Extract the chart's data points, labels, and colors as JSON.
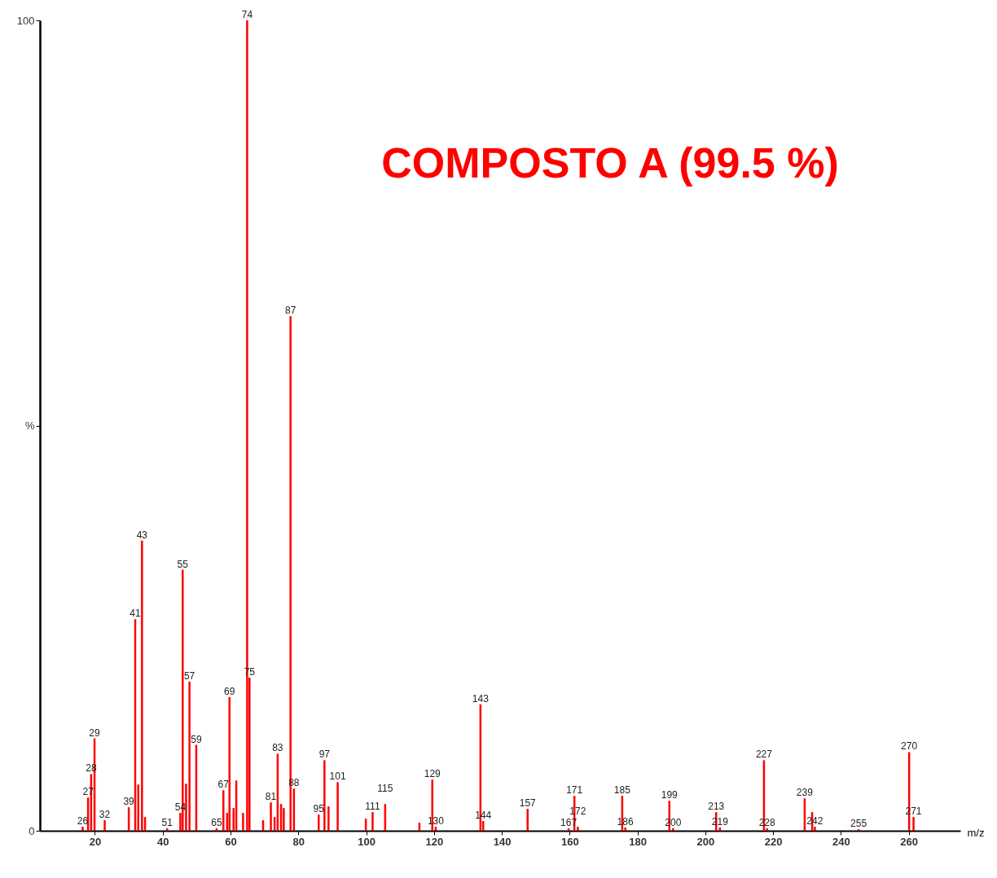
{
  "chart_data": {
    "type": "bar",
    "title": "COMPOSTO A (99.5 %)",
    "xlabel": "m/z",
    "x": [
      16.4,
      18.0,
      18.9,
      19.9,
      22.9,
      30.0,
      31.9,
      32.8,
      33.9,
      34.8,
      41.3,
      45.2,
      45.9,
      46.9,
      47.9,
      49.9,
      55.9,
      57.9,
      59.0,
      59.7,
      60.9,
      61.7,
      63.7,
      64.9,
      65.6,
      69.6,
      71.9,
      73.0,
      73.9,
      74.9,
      75.7,
      77.7,
      78.7,
      86.0,
      87.7,
      88.9,
      91.6,
      99.9,
      101.9,
      105.6,
      115.7,
      119.5,
      120.5,
      133.7,
      134.5,
      147.6,
      159.7,
      161.4,
      162.4,
      175.5,
      176.4,
      189.4,
      190.5,
      203.2,
      204.3,
      217.3,
      218.2,
      229.3,
      231.5,
      232.3,
      245.2,
      260.1,
      261.4
    ],
    "series": [
      {
        "color": "#ff0000",
        "values": [
          0.5,
          4.1,
          7.0,
          11.4,
          1.3,
          2.9,
          26.1,
          5.7,
          35.8,
          1.7,
          0.3,
          2.2,
          32.2,
          5.8,
          18.4,
          10.6,
          0.3,
          5.0,
          2.2,
          16.5,
          2.8,
          6.2,
          2.2,
          100,
          18.9,
          1.3,
          3.5,
          1.7,
          9.5,
          3.3,
          2.8,
          63.5,
          5.2,
          2.0,
          8.7,
          3.0,
          6.0,
          1.5,
          2.3,
          3.3,
          1.0,
          6.3,
          0.5,
          15.6,
          1.2,
          2.7,
          0.3,
          4.3,
          0.5,
          4.3,
          0.4,
          3.7,
          0.3,
          2.3,
          0.4,
          8.7,
          0.3,
          4.0,
          2.3,
          0.5,
          0.2,
          9.7,
          1.7
        ]
      }
    ],
    "xlim": [
      5,
      274
    ],
    "xticks": [
      20,
      40,
      60,
      80,
      100,
      120,
      140,
      160,
      180,
      200,
      220,
      240,
      260
    ],
    "ylim": [
      0,
      100
    ],
    "yticks": [
      0,
      {
        "value": 50,
        "label": "%"
      },
      100
    ],
    "grid": false,
    "annotations": [
      {
        "text": "26",
        "x": 16.4,
        "y": 0.5
      },
      {
        "text": "27",
        "x": 18.0,
        "y": 4.1
      },
      {
        "text": "28",
        "x": 18.9,
        "y": 7.0
      },
      {
        "text": "29",
        "x": 19.9,
        "y": 11.4
      },
      {
        "text": "32",
        "x": 22.9,
        "y": 1.3
      },
      {
        "text": "39",
        "x": 30.0,
        "y": 2.9
      },
      {
        "text": "41",
        "x": 31.9,
        "y": 26.1
      },
      {
        "text": "43",
        "x": 33.9,
        "y": 35.8
      },
      {
        "text": "51",
        "x": 41.3,
        "y": 0.3
      },
      {
        "text": "54",
        "x": 45.2,
        "y": 2.2
      },
      {
        "text": "55",
        "x": 45.9,
        "y": 32.2
      },
      {
        "text": "57",
        "x": 47.9,
        "y": 18.4
      },
      {
        "text": "59",
        "x": 49.9,
        "y": 10.6
      },
      {
        "text": "65",
        "x": 55.9,
        "y": 0.3
      },
      {
        "text": "67",
        "x": 57.9,
        "y": 5.0
      },
      {
        "text": "69",
        "x": 59.7,
        "y": 16.5
      },
      {
        "text": "74",
        "x": 64.9,
        "y": 100
      },
      {
        "text": "75",
        "x": 65.6,
        "y": 18.9
      },
      {
        "text": "81",
        "x": 71.9,
        "y": 3.5
      },
      {
        "text": "83",
        "x": 73.9,
        "y": 9.5
      },
      {
        "text": "87",
        "x": 77.7,
        "y": 63.5
      },
      {
        "text": "88",
        "x": 78.7,
        "y": 5.2
      },
      {
        "text": "95",
        "x": 86.0,
        "y": 2.0
      },
      {
        "text": "97",
        "x": 87.7,
        "y": 8.7
      },
      {
        "text": "101",
        "x": 91.6,
        "y": 6.0
      },
      {
        "text": "111",
        "x": 101.9,
        "y": 2.3
      },
      {
        "text": "115",
        "x": 105.6,
        "y": 3.3
      },
      {
        "text": "129",
        "x": 119.5,
        "y": 6.3
      },
      {
        "text": "130",
        "x": 120.5,
        "y": 0.5
      },
      {
        "text": "143",
        "x": 133.7,
        "y": 15.6
      },
      {
        "text": "144",
        "x": 134.5,
        "y": 1.2
      },
      {
        "text": "157",
        "x": 147.6,
        "y": 2.7
      },
      {
        "text": "167",
        "x": 159.7,
        "y": 0.3
      },
      {
        "text": "171",
        "x": 161.4,
        "y": 4.3
      },
      {
        "text": "172",
        "x": 162.4,
        "y": 0.5
      },
      {
        "text": "185",
        "x": 175.5,
        "y": 4.3
      },
      {
        "text": "186",
        "x": 176.4,
        "y": 0.4
      },
      {
        "text": "199",
        "x": 189.4,
        "y": 3.7
      },
      {
        "text": "200",
        "x": 190.5,
        "y": 0.3
      },
      {
        "text": "213",
        "x": 203.2,
        "y": 2.3
      },
      {
        "text": "219",
        "x": 204.3,
        "y": 0.4
      },
      {
        "text": "227",
        "x": 217.3,
        "y": 8.7
      },
      {
        "text": "228",
        "x": 218.2,
        "y": 0.3
      },
      {
        "text": "239",
        "x": 229.3,
        "y": 4.0
      },
      {
        "text": "242",
        "x": 232.3,
        "y": 0.5
      },
      {
        "text": "255",
        "x": 245.2,
        "y": 0.2
      },
      {
        "text": "270",
        "x": 260.1,
        "y": 9.7
      },
      {
        "text": "271",
        "x": 261.4,
        "y": 1.7
      }
    ]
  }
}
